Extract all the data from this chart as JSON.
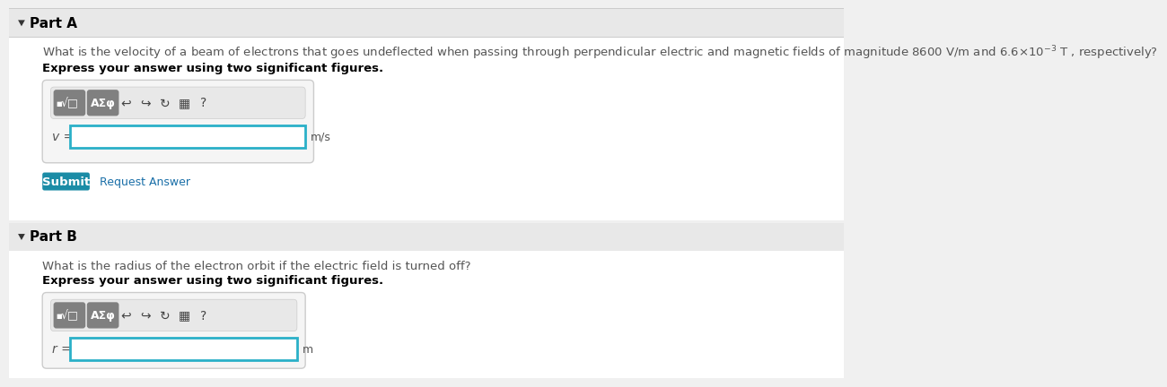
{
  "bg_color": "#f0f0f0",
  "white": "#ffffff",
  "part_header_bg": "#e8e8e8",
  "content_bg": "#ffffff",
  "part_a_label": "Part A",
  "part_b_label": "Part B",
  "part_a_question": "What is the velocity of a beam of electrons that goes undeflected when passing through perpendicular electric and magnetic fields of magnitude 8600 V/m and 6.6×10$^{-3}$ T , respectively?",
  "part_a_express": "Express your answer using two significant figures.",
  "part_b_question": "What is the radius of the electron orbit if the electric field is turned off?",
  "part_b_express": "Express your answer using two significant figures.",
  "v_label": "$v$ =",
  "r_label": "$r$ =",
  "unit_a": "m/s",
  "unit_b": "m",
  "submit_text": "Submit",
  "request_text": "Request Answer",
  "submit_bg": "#1b8ca6",
  "submit_fg": "#ffffff",
  "request_color": "#1a6fa8",
  "toolbar_bg": "#808080",
  "toolbar_inner_bg": "#e8e8e8",
  "input_border": "#2ab0c8",
  "input_bg": "#ffffff",
  "question_color": "#555555",
  "express_color": "#000000",
  "part_label_color": "#000000",
  "separator_top": "#cccccc",
  "separator_bottom": "#cccccc",
  "box_border": "#cccccc",
  "box_bg": "#f5f5f5",
  "arrow_color": "#444444",
  "part_header_border_bottom": "#cccccc",
  "part_font": 11,
  "question_font": 9.5,
  "express_font": 9.5,
  "label_font": 9,
  "unit_font": 9,
  "submit_font": 9,
  "request_font": 9,
  "toolbar_font": 9,
  "icon_font": 11
}
